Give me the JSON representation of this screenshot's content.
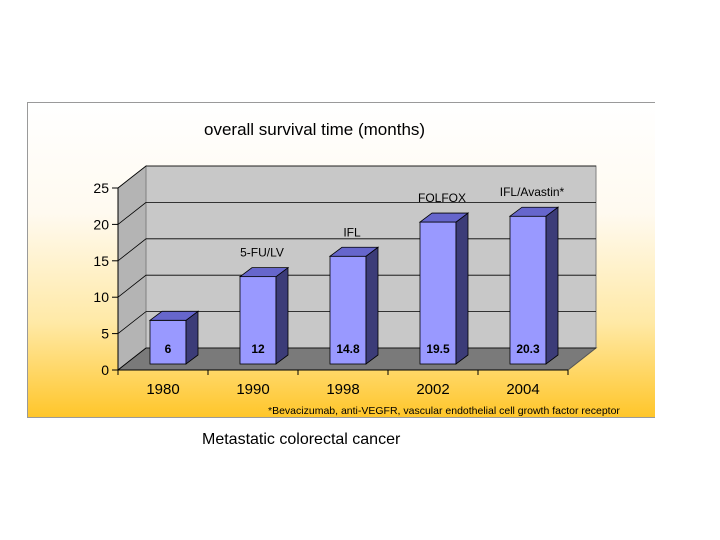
{
  "caption": "Metastatic colorectal cancer",
  "chart_data": {
    "type": "bar",
    "title": "overall survival time (months)",
    "categories": [
      "1980",
      "1990",
      "1998",
      "2002",
      "2004"
    ],
    "values": [
      6,
      12,
      14.8,
      19.5,
      20.3
    ],
    "value_labels": [
      "6",
      "12",
      "14.8",
      "19.5",
      "20.3"
    ],
    "annotations": [
      "",
      "5-FU/LV",
      "IFL",
      "FOLFOX",
      "IFL/Avastin*"
    ],
    "yticks": [
      "0",
      "5",
      "10",
      "15",
      "20",
      "25"
    ],
    "ylim": [
      0,
      25
    ],
    "grid": true,
    "three_d": true,
    "bar_color": "#9999ff",
    "footnote": "*Bevacizumab, anti-VEGFR, vascular endothelial cell growth factor receptor",
    "xlabel": "",
    "ylabel": ""
  }
}
